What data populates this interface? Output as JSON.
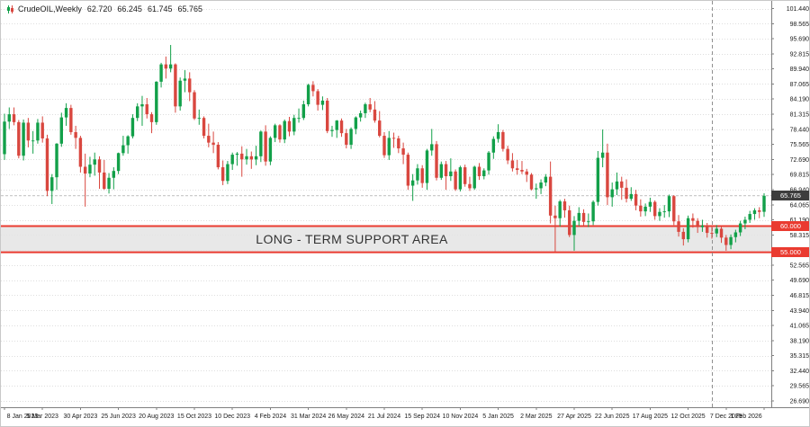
{
  "header": {
    "symbol": "CrudeOIL,Weekly",
    "open": "62.720",
    "high": "66.245",
    "low": "61.745",
    "close": "65.765"
  },
  "chart_data": {
    "type": "candlestick",
    "instrument": "CrudeOIL",
    "timeframe": "Weekly",
    "y_axis": {
      "max": 101.44,
      "min": 26.69,
      "labels": [
        "101.440",
        "98.565",
        "95.690",
        "92.815",
        "89.940",
        "87.065",
        "84.190",
        "81.315",
        "78.440",
        "75.565",
        "72.690",
        "69.815",
        "66.940",
        "64.065",
        "61.190",
        "58.315",
        "55.440",
        "52.565",
        "49.690",
        "46.815",
        "43.940",
        "41.065",
        "38.190",
        "35.315",
        "32.440",
        "29.565",
        "26.690"
      ]
    },
    "x_axis": {
      "labels": [
        {
          "index": 0,
          "label": "8 Jan 2023"
        },
        {
          "index": 8,
          "label": "5 Mar 2023"
        },
        {
          "index": 16,
          "label": "30 Apr 2023"
        },
        {
          "index": 24,
          "label": "25 Jun 2023"
        },
        {
          "index": 32,
          "label": "20 Aug 2023"
        },
        {
          "index": 40,
          "label": "15 Oct 2023"
        },
        {
          "index": 48,
          "label": "10 Dec 2023"
        },
        {
          "index": 56,
          "label": "4 Feb 2024"
        },
        {
          "index": 64,
          "label": "31 Mar 2024"
        },
        {
          "index": 72,
          "label": "26 May 2024"
        },
        {
          "index": 80,
          "label": "21 Jul 2024"
        },
        {
          "index": 88,
          "label": "15 Sep 2024"
        },
        {
          "index": 96,
          "label": "10 Nov 2024"
        },
        {
          "index": 104,
          "label": "5 Jan 2025"
        },
        {
          "index": 112,
          "label": "2 Mar 2025"
        },
        {
          "index": 120,
          "label": "27 Apr 2025"
        },
        {
          "index": 128,
          "label": "22 Jun 2025"
        },
        {
          "index": 136,
          "label": "17 Aug 2025"
        },
        {
          "index": 144,
          "label": "12 Oct 2025"
        },
        {
          "index": 152,
          "label": "7 Dec 2025"
        },
        {
          "index": 160,
          "label": "1 Feb 2026"
        }
      ]
    },
    "candles": [
      [
        73.7,
        81.4,
        72.6,
        79.9
      ],
      [
        79.9,
        82.6,
        78.5,
        81.3
      ],
      [
        81.3,
        82.6,
        79.2,
        79.8
      ],
      [
        79.8,
        80.2,
        72.9,
        73.4
      ],
      [
        73.4,
        80.3,
        72.5,
        79.7
      ],
      [
        79.7,
        80.6,
        75.0,
        76.3
      ],
      [
        76.3,
        78.1,
        73.8,
        76.3
      ],
      [
        76.3,
        80.4,
        75.7,
        79.7
      ],
      [
        79.7,
        80.9,
        75.9,
        76.7
      ],
      [
        76.7,
        77.4,
        65.7,
        66.7
      ],
      [
        66.7,
        69.9,
        64.2,
        69.3
      ],
      [
        69.3,
        75.8,
        66.9,
        75.7
      ],
      [
        75.7,
        81.6,
        75.1,
        80.7
      ],
      [
        80.7,
        83.4,
        79.1,
        82.5
      ],
      [
        82.5,
        83.1,
        77.4,
        77.9
      ],
      [
        77.9,
        79.1,
        74.7,
        76.8
      ],
      [
        76.8,
        77.2,
        70.2,
        71.3
      ],
      [
        71.3,
        73.8,
        63.7,
        70.0
      ],
      [
        70.0,
        73.2,
        69.3,
        71.7
      ],
      [
        71.7,
        74.0,
        69.6,
        72.7
      ],
      [
        72.7,
        73.3,
        67.1,
        70.2
      ],
      [
        70.2,
        72.6,
        66.9,
        67.1
      ],
      [
        67.1,
        70.1,
        66.2,
        69.2
      ],
      [
        69.2,
        71.2,
        67.0,
        70.5
      ],
      [
        70.5,
        74.0,
        69.9,
        73.9
      ],
      [
        73.9,
        77.2,
        73.4,
        75.4
      ],
      [
        75.4,
        77.3,
        73.8,
        77.1
      ],
      [
        77.1,
        81.3,
        76.7,
        80.6
      ],
      [
        80.6,
        83.4,
        80.0,
        82.8
      ],
      [
        82.8,
        84.8,
        79.1,
        83.2
      ],
      [
        83.2,
        84.4,
        80.5,
        81.3
      ],
      [
        81.3,
        81.7,
        77.7,
        79.8
      ],
      [
        79.8,
        87.6,
        79.3,
        87.5
      ],
      [
        87.5,
        91.1,
        86.4,
        90.8
      ],
      [
        90.8,
        92.3,
        88.1,
        90.0
      ],
      [
        90.0,
        94.5,
        89.3,
        90.8
      ],
      [
        90.8,
        91.0,
        81.6,
        82.8
      ],
      [
        82.8,
        88.3,
        82.0,
        87.7
      ],
      [
        87.7,
        89.7,
        85.5,
        88.1
      ],
      [
        88.1,
        89.3,
        83.8,
        85.5
      ],
      [
        85.5,
        85.9,
        80.2,
        80.5
      ],
      [
        80.5,
        82.2,
        79.3,
        80.6
      ],
      [
        80.6,
        80.9,
        76.7,
        77.2
      ],
      [
        77.2,
        79.5,
        75.0,
        75.9
      ],
      [
        75.9,
        78.0,
        73.9,
        75.5
      ],
      [
        75.5,
        76.0,
        70.8,
        71.2
      ],
      [
        71.2,
        72.5,
        67.8,
        68.6
      ],
      [
        68.6,
        72.4,
        68.0,
        71.8
      ],
      [
        71.8,
        74.0,
        70.7,
        73.6
      ],
      [
        73.6,
        74.1,
        71.5,
        73.8
      ],
      [
        73.8,
        75.2,
        69.4,
        72.7
      ],
      [
        72.7,
        74.7,
        71.7,
        73.3
      ],
      [
        73.3,
        74.2,
        70.9,
        72.7
      ],
      [
        72.7,
        75.3,
        71.6,
        73.3
      ],
      [
        73.3,
        78.2,
        72.2,
        78.0
      ],
      [
        78.0,
        79.2,
        71.5,
        72.3
      ],
      [
        72.3,
        77.1,
        71.6,
        76.8
      ],
      [
        76.8,
        79.5,
        76.0,
        79.2
      ],
      [
        79.2,
        79.4,
        75.9,
        76.5
      ],
      [
        76.5,
        80.3,
        75.8,
        80.0
      ],
      [
        80.0,
        80.8,
        77.1,
        78.0
      ],
      [
        78.0,
        81.2,
        77.3,
        80.6
      ],
      [
        80.6,
        82.4,
        79.7,
        80.6
      ],
      [
        80.6,
        83.9,
        80.2,
        83.2
      ],
      [
        83.2,
        87.1,
        82.8,
        86.9
      ],
      [
        86.9,
        87.6,
        84.7,
        85.7
      ],
      [
        85.7,
        86.1,
        82.0,
        83.1
      ],
      [
        83.1,
        84.7,
        82.1,
        83.9
      ],
      [
        83.9,
        84.4,
        77.7,
        78.1
      ],
      [
        78.1,
        79.1,
        77.0,
        78.3
      ],
      [
        78.3,
        80.2,
        76.8,
        80.1
      ],
      [
        80.1,
        80.5,
        77.0,
        77.7
      ],
      [
        77.7,
        78.5,
        74.8,
        75.5
      ],
      [
        75.5,
        78.8,
        74.7,
        78.5
      ],
      [
        78.5,
        80.9,
        77.5,
        80.7
      ],
      [
        80.7,
        82.0,
        79.9,
        81.5
      ],
      [
        81.5,
        83.5,
        80.6,
        83.2
      ],
      [
        83.2,
        84.4,
        81.7,
        82.2
      ],
      [
        82.2,
        83.8,
        79.7,
        80.1
      ],
      [
        80.1,
        81.9,
        76.9,
        77.2
      ],
      [
        77.2,
        77.9,
        73.0,
        73.5
      ],
      [
        73.5,
        78.1,
        72.6,
        76.8
      ],
      [
        76.8,
        77.8,
        74.9,
        76.7
      ],
      [
        76.7,
        77.2,
        73.9,
        74.8
      ],
      [
        74.8,
        75.9,
        71.8,
        73.6
      ],
      [
        73.6,
        74.0,
        66.9,
        67.7
      ],
      [
        67.7,
        69.9,
        64.8,
        68.7
      ],
      [
        68.7,
        71.8,
        67.9,
        71.0
      ],
      [
        71.0,
        71.6,
        67.3,
        68.2
      ],
      [
        68.2,
        74.7,
        66.9,
        74.4
      ],
      [
        74.4,
        78.5,
        73.4,
        75.6
      ],
      [
        75.6,
        76.2,
        68.7,
        69.2
      ],
      [
        69.2,
        72.3,
        68.8,
        71.8
      ],
      [
        71.8,
        72.4,
        66.9,
        69.5
      ],
      [
        69.5,
        72.9,
        68.6,
        70.4
      ],
      [
        70.4,
        70.8,
        66.7,
        67.0
      ],
      [
        67.0,
        71.5,
        66.6,
        71.2
      ],
      [
        71.2,
        71.7,
        67.5,
        68.0
      ],
      [
        68.0,
        69.4,
        66.7,
        67.2
      ],
      [
        67.2,
        71.5,
        66.9,
        71.3
      ],
      [
        71.3,
        72.0,
        68.8,
        69.5
      ],
      [
        69.5,
        71.0,
        68.9,
        70.6
      ],
      [
        70.6,
        74.3,
        69.8,
        74.0
      ],
      [
        74.0,
        77.1,
        72.8,
        76.6
      ],
      [
        76.6,
        79.4,
        75.9,
        77.9
      ],
      [
        77.9,
        78.3,
        74.2,
        74.7
      ],
      [
        74.7,
        75.3,
        71.8,
        72.5
      ],
      [
        72.5,
        73.9,
        70.4,
        71.0
      ],
      [
        71.0,
        72.6,
        69.8,
        70.7
      ],
      [
        70.7,
        72.4,
        69.9,
        70.4
      ],
      [
        70.4,
        70.9,
        68.4,
        69.8
      ],
      [
        69.8,
        70.1,
        66.8,
        67.0
      ],
      [
        67.0,
        68.1,
        65.2,
        67.2
      ],
      [
        67.2,
        68.9,
        66.1,
        68.3
      ],
      [
        68.3,
        69.9,
        67.6,
        69.4
      ],
      [
        69.4,
        72.3,
        60.5,
        62.0
      ],
      [
        62.0,
        63.9,
        55.1,
        61.5
      ],
      [
        61.5,
        65.0,
        59.9,
        64.7
      ],
      [
        64.7,
        65.2,
        61.6,
        63.0
      ],
      [
        63.0,
        63.9,
        57.9,
        58.3
      ],
      [
        58.3,
        61.9,
        55.3,
        61.0
      ],
      [
        61.0,
        63.6,
        60.0,
        62.5
      ],
      [
        62.5,
        63.2,
        60.1,
        60.8
      ],
      [
        60.8,
        62.4,
        59.8,
        60.9
      ],
      [
        60.9,
        64.9,
        60.2,
        64.6
      ],
      [
        64.6,
        74.3,
        63.9,
        73.0
      ],
      [
        73.0,
        78.4,
        71.2,
        74.0
      ],
      [
        74.0,
        75.7,
        64.0,
        65.5
      ],
      [
        65.5,
        68.3,
        63.7,
        67.0
      ],
      [
        67.0,
        70.2,
        65.9,
        68.5
      ],
      [
        68.5,
        69.4,
        65.0,
        67.3
      ],
      [
        67.3,
        68.9,
        64.5,
        65.2
      ],
      [
        65.2,
        67.4,
        64.8,
        66.1
      ],
      [
        66.1,
        66.9,
        63.0,
        63.9
      ],
      [
        63.9,
        65.1,
        61.8,
        62.8
      ],
      [
        62.8,
        64.3,
        61.9,
        63.7
      ],
      [
        63.7,
        65.4,
        62.7,
        64.6
      ],
      [
        64.6,
        64.9,
        61.2,
        61.9
      ],
      [
        61.9,
        63.4,
        61.0,
        62.7
      ],
      [
        62.7,
        64.0,
        61.6,
        62.8
      ],
      [
        62.8,
        66.0,
        61.7,
        65.7
      ],
      [
        65.7,
        65.9,
        60.2,
        60.9
      ],
      [
        60.9,
        62.1,
        58.0,
        58.9
      ],
      [
        58.9,
        59.6,
        56.3,
        57.5
      ],
      [
        57.5,
        62.0,
        56.9,
        61.5
      ],
      [
        61.5,
        62.4,
        59.7,
        61.0
      ],
      [
        61.0,
        61.5,
        58.7,
        59.8
      ],
      [
        59.8,
        61.2,
        58.9,
        60.1
      ],
      [
        60.1,
        60.6,
        57.8,
        58.7
      ],
      [
        58.7,
        59.8,
        57.6,
        58.6
      ],
      [
        58.6,
        60.2,
        57.9,
        59.5
      ],
      [
        59.5,
        59.9,
        56.8,
        57.8
      ],
      [
        57.8,
        58.3,
        55.3,
        56.4
      ],
      [
        56.4,
        58.4,
        55.6,
        57.9
      ],
      [
        57.9,
        59.3,
        56.9,
        58.8
      ],
      [
        58.8,
        61.0,
        58.1,
        60.5
      ],
      [
        60.5,
        61.8,
        59.4,
        61.2
      ],
      [
        61.2,
        62.9,
        60.6,
        62.3
      ],
      [
        62.3,
        63.4,
        61.2,
        63.0
      ],
      [
        63.0,
        63.6,
        61.5,
        62.7
      ],
      [
        62.72,
        66.245,
        61.745,
        65.765
      ]
    ],
    "support_area": {
      "top_price": 60.0,
      "bottom_price": 55.0,
      "label": "LONG - TERM SUPPORT AREA",
      "top_tag_label": "60.000",
      "bottom_tag_label": "55.000"
    },
    "current_price": 65.765,
    "current_price_label": "65.765",
    "dashed_vline_index": 149,
    "colors": {
      "bull": "#12a049",
      "bear": "#d9473f",
      "band_fill": "#e4e4e4",
      "band_border": "#ea3b30",
      "grid": "#dedede",
      "axis_line": "#808080",
      "axis_text": "#1a1a1a",
      "current_tag_bg": "#3d3d3d",
      "support_tag_bg": "#ea3b30",
      "annotation_text": "#333333",
      "vline": "#909090"
    }
  }
}
